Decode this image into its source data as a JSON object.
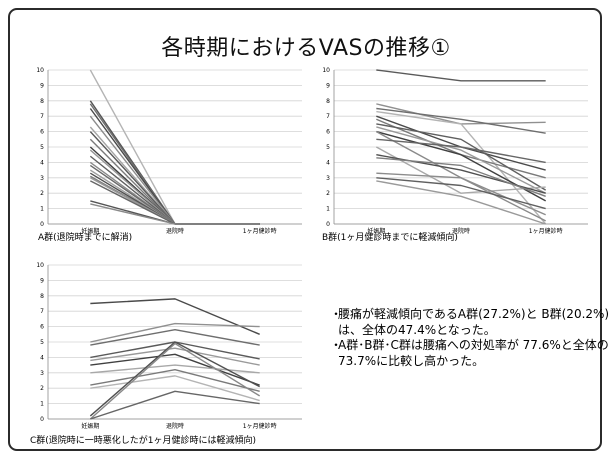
{
  "slide": {
    "title": "各時期におけるVASの推移①"
  },
  "summary": [
    {
      "bullet": "・",
      "text": "腰痛が軽減傾向であるA群(27.2%)と B群(20.2%)は、全体の47.4%となった。"
    },
    {
      "bullet": "・",
      "text": "A群･B群･C群は腰痛への対処率が 77.6%と全体の73.7%に比較し高かった。"
    }
  ],
  "chart_data": [
    {
      "type": "line",
      "title": "",
      "caption": "A群(退院時までに解消)",
      "categories": [
        "妊娠期",
        "退院時",
        "1ヶ月健診時"
      ],
      "y_ticks": [
        "0",
        "1",
        "2",
        "3",
        "4",
        "5",
        "6",
        "7",
        "8",
        "9",
        "10"
      ],
      "ylim": [
        0,
        10
      ],
      "grid": true,
      "line_color": "#707070",
      "series": [
        {
          "values": [
            10,
            0,
            0
          ],
          "color": "#b4b4b4"
        },
        {
          "values": [
            8.0,
            0,
            0
          ],
          "color": "#555555"
        },
        {
          "values": [
            7.8,
            0,
            0
          ],
          "color": "#6e6e6e"
        },
        {
          "values": [
            7.5,
            0,
            0
          ],
          "color": "#4a4a4a"
        },
        {
          "values": [
            7.0,
            0,
            0
          ],
          "color": "#8c8c8c"
        },
        {
          "values": [
            6.3,
            0,
            0
          ],
          "color": "#a5a5a5"
        },
        {
          "values": [
            6.0,
            0,
            0
          ],
          "color": "#5a5a5a"
        },
        {
          "values": [
            5.5,
            0,
            0
          ],
          "color": "#7a7a7a"
        },
        {
          "values": [
            5.0,
            0,
            0
          ],
          "color": "#404040"
        },
        {
          "values": [
            4.8,
            0,
            0
          ],
          "color": "#969696"
        },
        {
          "values": [
            4.4,
            0,
            0
          ],
          "color": "#5f5f5f"
        },
        {
          "values": [
            4.0,
            0,
            0
          ],
          "color": "#8a8a8a"
        },
        {
          "values": [
            3.8,
            0,
            0
          ],
          "color": "#6a6a6a"
        },
        {
          "values": [
            3.5,
            0,
            0
          ],
          "color": "#a0a0a0"
        },
        {
          "values": [
            3.3,
            0,
            0
          ],
          "color": "#505050"
        },
        {
          "values": [
            3.1,
            0,
            0
          ],
          "color": "#7e7e7e"
        },
        {
          "values": [
            3.0,
            0,
            0
          ],
          "color": "#9a9a9a"
        },
        {
          "values": [
            2.8,
            0,
            0
          ],
          "color": "#666666"
        },
        {
          "values": [
            1.5,
            0,
            0
          ],
          "color": "#555555"
        },
        {
          "values": [
            1.3,
            0,
            0
          ],
          "color": "#8a8a8a"
        }
      ]
    },
    {
      "type": "line",
      "title": "",
      "caption": "B群(1ヶ月健診時までに軽減傾向)",
      "categories": [
        "妊娠期",
        "退院時",
        "1ヶ月健診時"
      ],
      "y_ticks": [
        "0",
        "1",
        "2",
        "3",
        "4",
        "5",
        "6",
        "7",
        "8",
        "9",
        "10"
      ],
      "ylim": [
        0,
        10
      ],
      "grid": true,
      "series": [
        {
          "values": [
            10,
            9.3,
            9.3
          ],
          "color": "#5a5a5a"
        },
        {
          "values": [
            7.8,
            6.5,
            6.6
          ],
          "color": "#909090"
        },
        {
          "values": [
            7.5,
            6.8,
            5.9
          ],
          "color": "#6e6e6e"
        },
        {
          "values": [
            7.3,
            6.5,
            0
          ],
          "color": "#b4b4b4"
        },
        {
          "values": [
            7.0,
            5.0,
            3.5
          ],
          "color": "#4a4a4a"
        },
        {
          "values": [
            6.8,
            4.5,
            3.0
          ],
          "color": "#7a7a7a"
        },
        {
          "values": [
            6.5,
            5.5,
            2.2
          ],
          "color": "#5f5f5f"
        },
        {
          "values": [
            6.3,
            4.8,
            2.0
          ],
          "color": "#999999"
        },
        {
          "values": [
            6.0,
            4.5,
            1.5
          ],
          "color": "#404040"
        },
        {
          "values": [
            6.0,
            3.0,
            0.2
          ],
          "color": "#8a8a8a"
        },
        {
          "values": [
            5.5,
            5.0,
            4.0
          ],
          "color": "#666666"
        },
        {
          "values": [
            5.0,
            2.0,
            2.4
          ],
          "color": "#a8a8a8"
        },
        {
          "values": [
            4.5,
            3.5,
            2.0
          ],
          "color": "#505050"
        },
        {
          "values": [
            4.3,
            3.8,
            1.8
          ],
          "color": "#7e7e7e"
        },
        {
          "values": [
            3.3,
            3.0,
            0.6
          ],
          "color": "#8c8c8c"
        },
        {
          "values": [
            3.0,
            2.5,
            1.0
          ],
          "color": "#606060"
        },
        {
          "values": [
            2.8,
            1.8,
            0
          ],
          "color": "#9a9a9a"
        }
      ]
    },
    {
      "type": "line",
      "title": "",
      "caption": "C群(退院時に一時悪化したが1ヶ月健診時には軽減傾向)",
      "categories": [
        "妊娠期",
        "退院時",
        "1ヶ月健診時"
      ],
      "y_ticks": [
        "0",
        "1",
        "2",
        "3",
        "4",
        "5",
        "6",
        "7",
        "8",
        "9",
        "10"
      ],
      "ylim": [
        0,
        10
      ],
      "grid": true,
      "series": [
        {
          "values": [
            7.5,
            7.8,
            5.5
          ],
          "color": "#4a4a4a"
        },
        {
          "values": [
            5.0,
            6.2,
            6.0
          ],
          "color": "#909090"
        },
        {
          "values": [
            4.8,
            5.8,
            4.8
          ],
          "color": "#6e6e6e"
        },
        {
          "values": [
            4.0,
            5.0,
            3.9
          ],
          "color": "#5a5a5a"
        },
        {
          "values": [
            3.8,
            4.6,
            3.5
          ],
          "color": "#9a9a9a"
        },
        {
          "values": [
            3.5,
            4.2,
            2.2
          ],
          "color": "#404040"
        },
        {
          "values": [
            3.0,
            3.5,
            3.0
          ],
          "color": "#a8a8a8"
        },
        {
          "values": [
            2.2,
            3.2,
            1.8
          ],
          "color": "#7a7a7a"
        },
        {
          "values": [
            2.0,
            2.8,
            1.2
          ],
          "color": "#b4b4b4"
        },
        {
          "values": [
            0.2,
            5.0,
            2.1
          ],
          "color": "#505050"
        },
        {
          "values": [
            0,
            4.9,
            1.5
          ],
          "color": "#888888"
        },
        {
          "values": [
            0,
            1.8,
            1.0
          ],
          "color": "#666666"
        }
      ]
    }
  ]
}
